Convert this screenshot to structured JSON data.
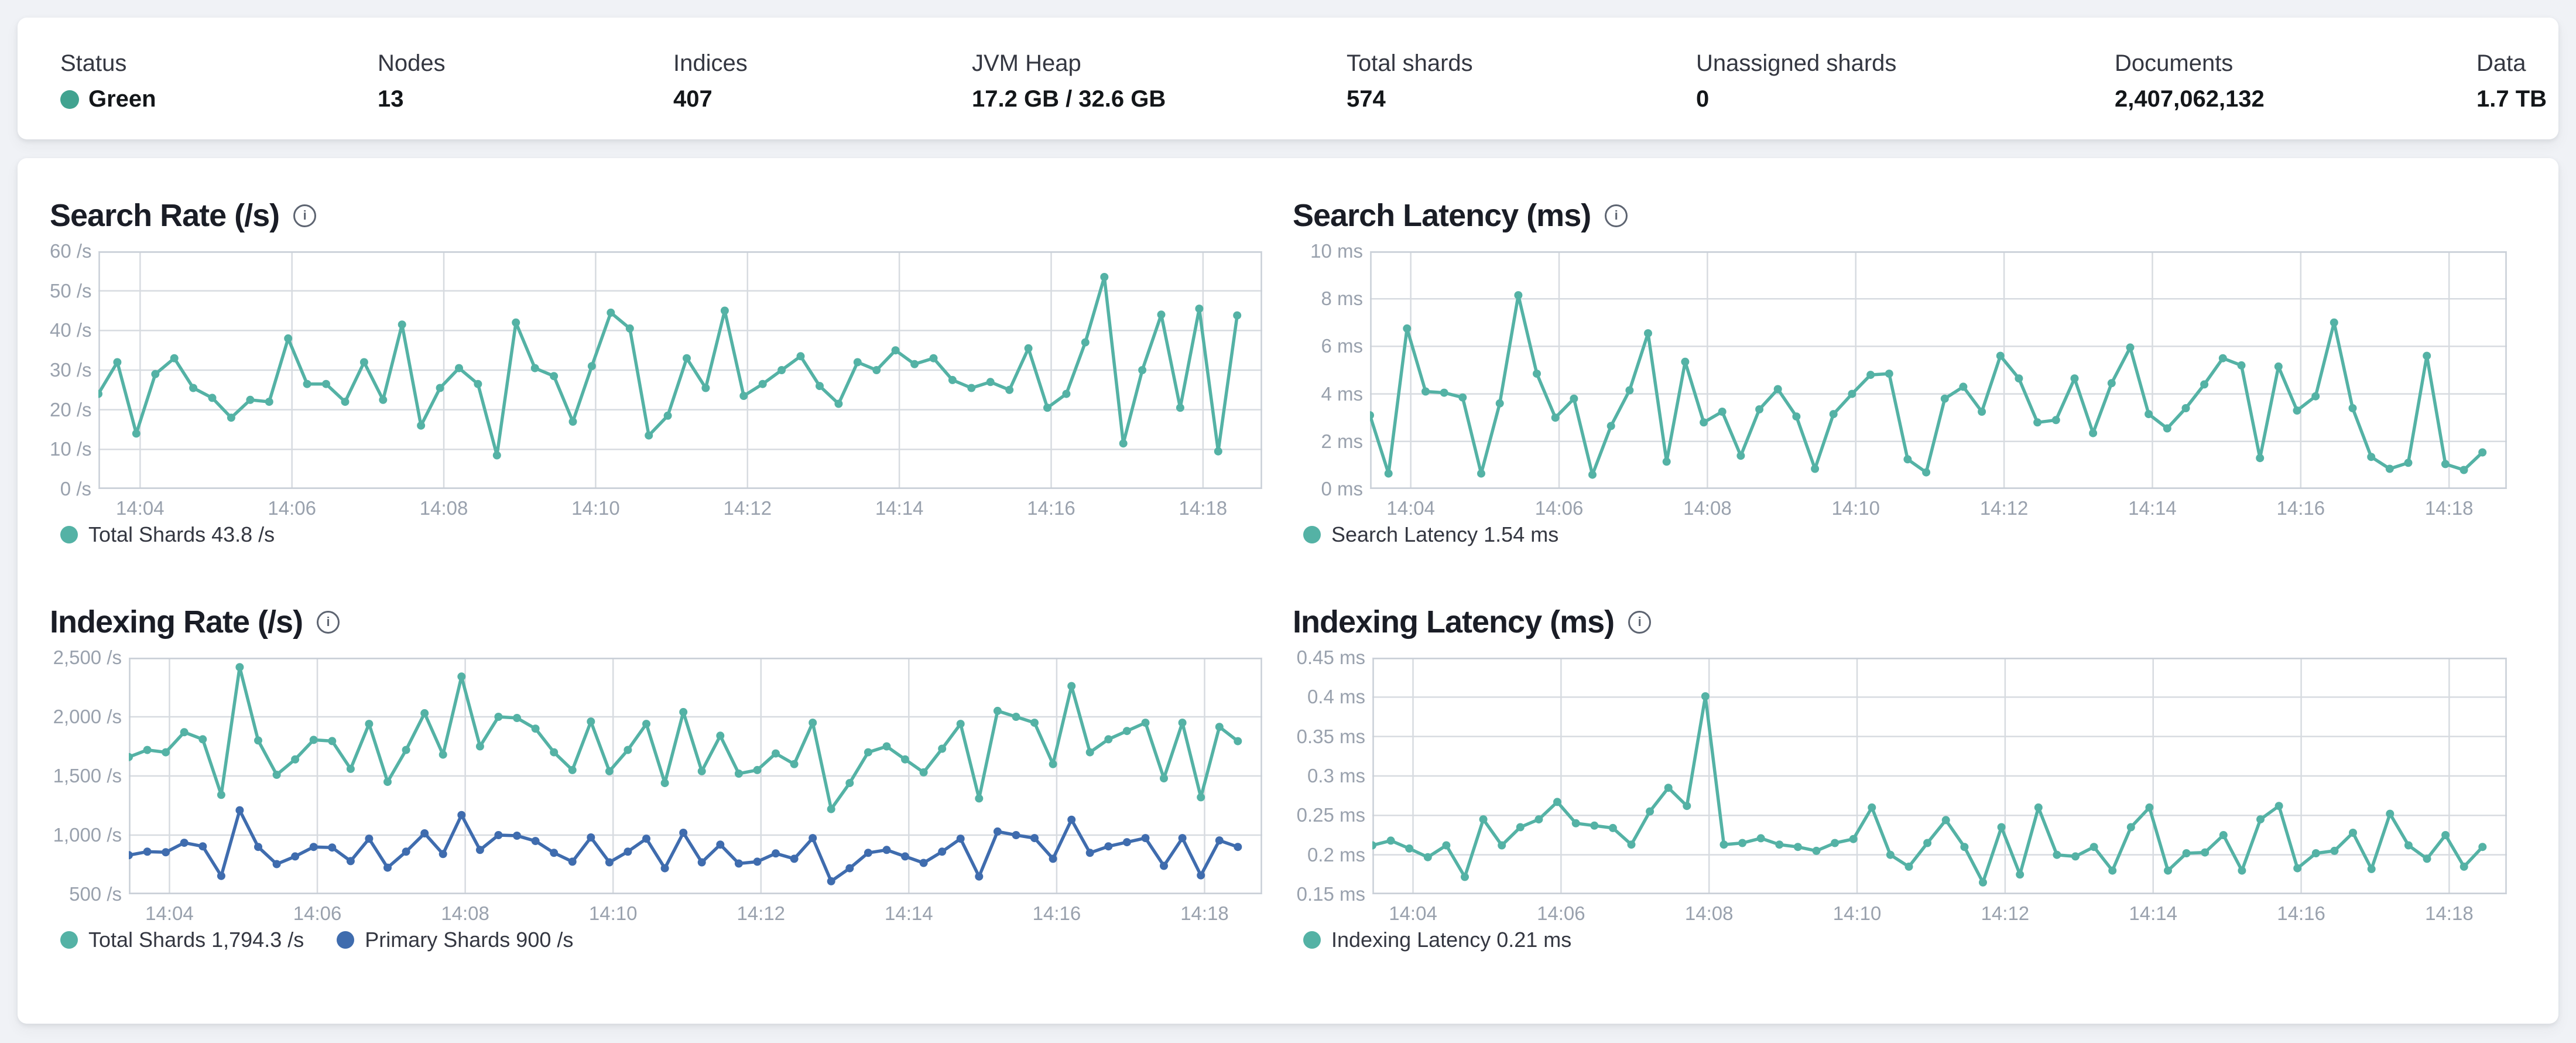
{
  "icons": {
    "info": "i"
  },
  "colors": {
    "teal": "#54b2a5",
    "blue": "#3f6cae",
    "status_green": "#41a390",
    "grid": "#d7dbe0",
    "plot_border": "#c9cfd7",
    "axis_text": "#99a1ad"
  },
  "status_bar": {
    "items": [
      {
        "label": "Status",
        "value": "Green",
        "dot_color": "#41a390"
      },
      {
        "label": "Nodes",
        "value": "13"
      },
      {
        "label": "Indices",
        "value": "407"
      },
      {
        "label": "JVM Heap",
        "value": "17.2 GB / 32.6 GB"
      },
      {
        "label": "Total shards",
        "value": "574"
      },
      {
        "label": "Unassigned shards",
        "value": "0"
      },
      {
        "label": "Documents",
        "value": "2,407,062,132"
      },
      {
        "label": "Data",
        "value": "1.7 TB"
      }
    ]
  },
  "chart_data": [
    {
      "type": "line",
      "title": "Search Rate (/s)",
      "ylabel": "/s",
      "ylim": [
        0,
        60
      ],
      "y_ticks": [
        0,
        10,
        20,
        30,
        40,
        50,
        60
      ],
      "y_tick_labels": [
        "0 /s",
        "10 /s",
        "20 /s",
        "30 /s",
        "40 /s",
        "50 /s",
        "60 /s"
      ],
      "x_tick_labels": [
        "14:04",
        "14:06",
        "14:08",
        "14:10",
        "14:12",
        "14:14",
        "14:16",
        "14:18"
      ],
      "x_tick_times_min": [
        0.55,
        2.55,
        4.55,
        6.55,
        8.55,
        10.55,
        12.55,
        14.55
      ],
      "t_domain_min": [
        0,
        15.33
      ],
      "point_interval_min": 0.25,
      "grid": true,
      "legend_position": "bottom",
      "series": [
        {
          "name": "Total Shards",
          "legend_value": "43.8 /s",
          "color": "#54b2a5",
          "values": [
            24,
            32,
            14,
            29,
            33,
            25.5,
            23,
            18,
            22.5,
            22,
            38,
            26.5,
            26.5,
            22,
            32,
            22.5,
            41.5,
            16,
            25.5,
            30.5,
            26.5,
            8.5,
            42,
            30.5,
            28.5,
            17,
            31,
            44.5,
            40.5,
            13.5,
            18.5,
            33,
            25.5,
            45,
            23.5,
            26.5,
            30,
            33.5,
            26,
            21.5,
            32,
            30,
            35,
            31.5,
            33,
            27.5,
            25.5,
            27,
            25,
            35.5,
            20.5,
            24,
            37,
            53.5,
            11.5,
            30,
            44,
            20.5,
            45.5,
            9.5,
            43.8
          ]
        }
      ]
    },
    {
      "type": "line",
      "title": "Search Latency (ms)",
      "ylabel": "ms",
      "ylim": [
        0,
        10
      ],
      "y_ticks": [
        0,
        2,
        4,
        6,
        8,
        10
      ],
      "y_tick_labels": [
        "0 ms",
        "2 ms",
        "4 ms",
        "6 ms",
        "8 ms",
        "10 ms"
      ],
      "x_tick_labels": [
        "14:04",
        "14:06",
        "14:08",
        "14:10",
        "14:12",
        "14:14",
        "14:16",
        "14:18"
      ],
      "x_tick_times_min": [
        0.55,
        2.55,
        4.55,
        6.55,
        8.55,
        10.55,
        12.55,
        14.55
      ],
      "t_domain_min": [
        0,
        15.33
      ],
      "point_interval_min": 0.25,
      "grid": true,
      "legend_position": "bottom",
      "series": [
        {
          "name": "Search Latency",
          "legend_value": "1.54 ms",
          "color": "#54b2a5",
          "values": [
            3.1,
            0.65,
            6.75,
            4.1,
            4.05,
            3.85,
            0.65,
            3.6,
            8.15,
            4.85,
            3.0,
            3.8,
            0.6,
            2.65,
            4.15,
            6.55,
            1.15,
            5.35,
            2.8,
            3.25,
            1.4,
            3.35,
            4.2,
            3.05,
            0.85,
            3.15,
            4.0,
            4.8,
            4.85,
            1.25,
            0.7,
            3.8,
            4.3,
            3.25,
            5.6,
            4.65,
            2.8,
            2.9,
            4.65,
            2.35,
            4.45,
            5.95,
            3.15,
            2.55,
            3.4,
            4.4,
            5.5,
            5.2,
            1.3,
            5.15,
            3.3,
            3.9,
            7.0,
            3.4,
            1.35,
            0.85,
            1.1,
            5.6,
            1.05,
            0.8,
            1.54
          ]
        }
      ]
    },
    {
      "type": "line",
      "title": "Indexing Rate (/s)",
      "ylabel": "/s",
      "ylim": [
        500,
        2500
      ],
      "y_ticks": [
        500,
        1000,
        1500,
        2000,
        2500
      ],
      "y_tick_labels": [
        "500 /s",
        "1,000 /s",
        "1,500 /s",
        "2,000 /s",
        "2,500 /s"
      ],
      "x_tick_labels": [
        "14:04",
        "14:06",
        "14:08",
        "14:10",
        "14:12",
        "14:14",
        "14:16",
        "14:18"
      ],
      "x_tick_times_min": [
        0.55,
        2.55,
        4.55,
        6.55,
        8.55,
        10.55,
        12.55,
        14.55
      ],
      "t_domain_min": [
        0,
        15.33
      ],
      "point_interval_min": 0.25,
      "grid": true,
      "legend_position": "bottom",
      "series": [
        {
          "name": "Total Shards",
          "legend_value": "1,794.3 /s",
          "color": "#54b2a5",
          "values": [
            1660,
            1720,
            1700,
            1870,
            1810,
            1340,
            2420,
            1800,
            1510,
            1640,
            1805,
            1795,
            1560,
            1940,
            1450,
            1720,
            2030,
            1680,
            2340,
            1750,
            2000,
            1990,
            1900,
            1700,
            1550,
            1960,
            1540,
            1720,
            1940,
            1440,
            2040,
            1540,
            1840,
            1520,
            1550,
            1690,
            1600,
            1950,
            1220,
            1440,
            1700,
            1750,
            1640,
            1530,
            1730,
            1940,
            1310,
            2050,
            2000,
            1950,
            1600,
            2260,
            1700,
            1810,
            1880,
            1950,
            1480,
            1950,
            1320,
            1915,
            1794.3
          ]
        },
        {
          "name": "Primary Shards",
          "legend_value": "900 /s",
          "color": "#3f6cae",
          "values": [
            830,
            860,
            855,
            935,
            905,
            655,
            1210,
            900,
            755,
            820,
            900,
            895,
            780,
            970,
            725,
            860,
            1015,
            840,
            1170,
            875,
            1000,
            995,
            950,
            850,
            775,
            980,
            770,
            860,
            970,
            720,
            1020,
            770,
            920,
            760,
            775,
            845,
            800,
            975,
            610,
            720,
            850,
            875,
            820,
            765,
            860,
            970,
            650,
            1030,
            1000,
            975,
            800,
            1130,
            850,
            905,
            940,
            975,
            740,
            975,
            660,
            955,
            900
          ]
        }
      ]
    },
    {
      "type": "line",
      "title": "Indexing Latency (ms)",
      "ylabel": "ms",
      "ylim": [
        0.15,
        0.45
      ],
      "y_ticks": [
        0.15,
        0.2,
        0.25,
        0.3,
        0.35,
        0.4,
        0.45
      ],
      "y_tick_labels": [
        "0.15 ms",
        "0.2 ms",
        "0.25 ms",
        "0.3 ms",
        "0.35 ms",
        "0.4 ms",
        "0.45 ms"
      ],
      "x_tick_labels": [
        "14:04",
        "14:06",
        "14:08",
        "14:10",
        "14:12",
        "14:14",
        "14:16",
        "14:18"
      ],
      "x_tick_times_min": [
        0.55,
        2.55,
        4.55,
        6.55,
        8.55,
        10.55,
        12.55,
        14.55
      ],
      "t_domain_min": [
        0,
        15.33
      ],
      "point_interval_min": 0.25,
      "grid": true,
      "legend_position": "bottom",
      "series": [
        {
          "name": "Indexing Latency",
          "legend_value": "0.21 ms",
          "color": "#54b2a5",
          "values": [
            0.212,
            0.218,
            0.208,
            0.197,
            0.212,
            0.172,
            0.245,
            0.212,
            0.235,
            0.245,
            0.267,
            0.24,
            0.237,
            0.234,
            0.213,
            0.255,
            0.285,
            0.262,
            0.401,
            0.213,
            0.215,
            0.221,
            0.213,
            0.21,
            0.205,
            0.215,
            0.22,
            0.26,
            0.2,
            0.185,
            0.215,
            0.244,
            0.21,
            0.165,
            0.235,
            0.175,
            0.26,
            0.2,
            0.198,
            0.21,
            0.18,
            0.235,
            0.26,
            0.18,
            0.202,
            0.203,
            0.225,
            0.18,
            0.245,
            0.262,
            0.183,
            0.202,
            0.205,
            0.228,
            0.182,
            0.252,
            0.212,
            0.195,
            0.225,
            0.185,
            0.21
          ]
        }
      ]
    }
  ]
}
